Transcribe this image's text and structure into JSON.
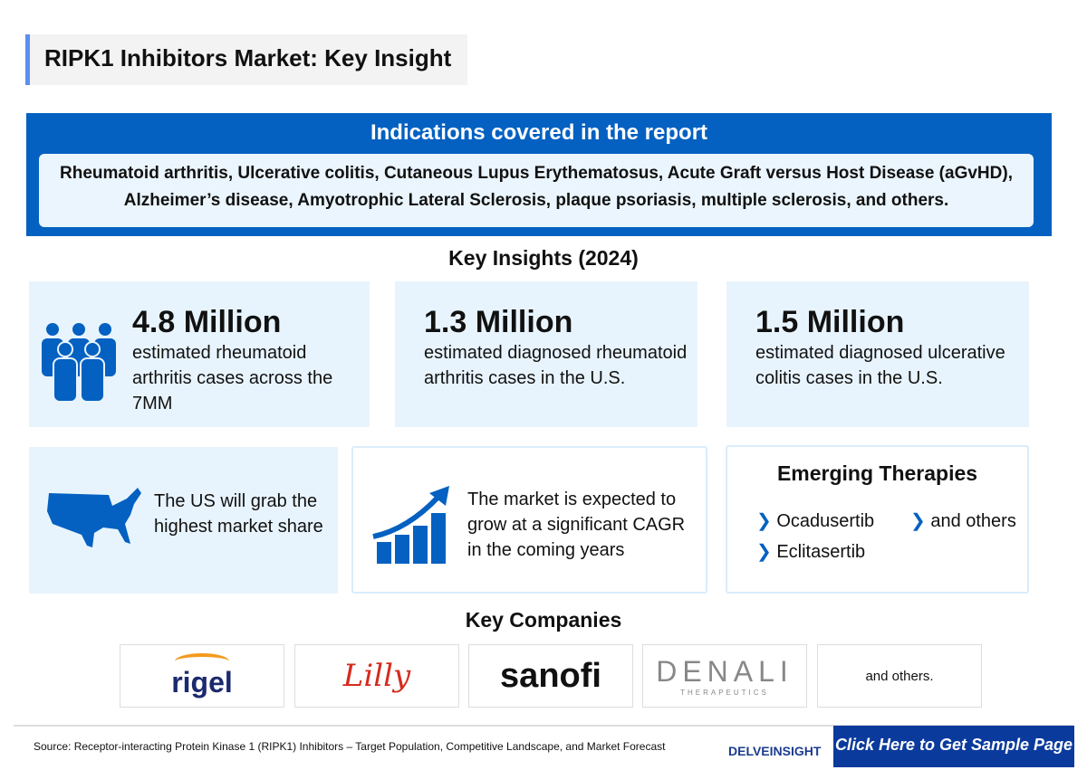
{
  "title": "RIPK1 Inhibitors Market: Key Insight",
  "indications": {
    "heading": "Indications covered in the report",
    "text": "Rheumatoid arthritis, Ulcerative colitis, Cutaneous Lupus Erythematosus, Acute Graft versus Host Disease (aGvHD), Alzheimer’s disease, Amyotrophic Lateral Sclerosis, plaque psoriasis, multiple sclerosis, and others."
  },
  "insights_heading": "Key Insights (2024)",
  "stats": [
    {
      "value": "4.8 Million",
      "desc": "estimated rheumatoid arthritis cases across the 7MM",
      "icon": "people-group-icon"
    },
    {
      "value": "1.3 Million",
      "desc": "estimated diagnosed rheumatoid arthritis cases in the U.S."
    },
    {
      "value": "1.5 Million",
      "desc": "estimated diagnosed ulcerative colitis cases in the U.S."
    }
  ],
  "us_share": "The US will grab the highest market share",
  "growth": "The market is expected to grow at a significant CAGR in the coming years",
  "therapies": {
    "heading": "Emerging Therapies",
    "items": [
      "Ocadusertib",
      "Eclitasertib",
      "and others"
    ]
  },
  "companies_heading": "Key Companies",
  "companies": [
    "rigel",
    "Lilly",
    "sanofi",
    "DENALI",
    "THERAPEUTICS",
    "and others."
  ],
  "source": "Source: Receptor-interacting Protein Kinase 1 (RIPK1) Inhibitors – Target Population, Competitive Landscape, and Market Forecast",
  "brand": "DELVEINSIGHT",
  "cta": "Click Here to Get Sample Page",
  "colors": {
    "primary": "#0461c1",
    "card": "#e8f4fd",
    "cta": "#0a3a9c"
  }
}
